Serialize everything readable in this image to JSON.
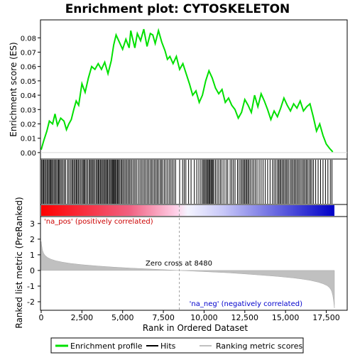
{
  "chart_data": {
    "type": "line",
    "title": "Enrichment plot: CYTOSKELETON",
    "x_max": 18000,
    "x_ticks": [
      0,
      2500,
      5000,
      7500,
      10000,
      12500,
      15000,
      17500
    ],
    "xlabel": "Rank in Ordered Dataset",
    "es_panel": {
      "ylabel": "Enrichment score (ES)",
      "ylim": [
        -0.004,
        0.092
      ],
      "y_ticks": [
        0.0,
        0.01,
        0.02,
        0.03,
        0.04,
        0.05,
        0.06,
        0.07,
        0.08
      ],
      "y_tick_labels": [
        "0.00",
        "0.01",
        "0.02",
        "0.03",
        "0.04",
        "0.05",
        "0.06",
        "0.07",
        "0.08"
      ],
      "color": "#00e000",
      "x": [
        0,
        150,
        350,
        500,
        700,
        850,
        1000,
        1200,
        1400,
        1550,
        1700,
        1850,
        2000,
        2150,
        2300,
        2500,
        2700,
        2900,
        3100,
        3300,
        3500,
        3700,
        3900,
        4100,
        4300,
        4450,
        4600,
        4800,
        5000,
        5200,
        5400,
        5500,
        5600,
        5750,
        5900,
        6100,
        6300,
        6500,
        6700,
        6850,
        7000,
        7200,
        7400,
        7600,
        7750,
        7900,
        8100,
        8300,
        8500,
        8700,
        8900,
        9100,
        9300,
        9500,
        9700,
        9900,
        10100,
        10300,
        10500,
        10700,
        10900,
        11100,
        11300,
        11500,
        11700,
        11900,
        12100,
        12300,
        12500,
        12700,
        12900,
        13100,
        13300,
        13500,
        13700,
        13900,
        14100,
        14300,
        14500,
        14700,
        14900,
        15100,
        15300,
        15500,
        15700,
        15900,
        16100,
        16300,
        16500,
        16700,
        16900,
        17100,
        17300,
        17500,
        17700,
        17900
      ],
      "y": [
        0.002,
        0.008,
        0.015,
        0.022,
        0.02,
        0.027,
        0.019,
        0.024,
        0.022,
        0.016,
        0.02,
        0.023,
        0.03,
        0.036,
        0.033,
        0.048,
        0.042,
        0.052,
        0.06,
        0.058,
        0.062,
        0.058,
        0.063,
        0.055,
        0.064,
        0.075,
        0.082,
        0.077,
        0.072,
        0.079,
        0.073,
        0.085,
        0.08,
        0.073,
        0.083,
        0.078,
        0.086,
        0.074,
        0.083,
        0.082,
        0.076,
        0.085,
        0.077,
        0.071,
        0.065,
        0.067,
        0.062,
        0.067,
        0.058,
        0.062,
        0.055,
        0.048,
        0.04,
        0.043,
        0.035,
        0.04,
        0.05,
        0.057,
        0.052,
        0.045,
        0.041,
        0.044,
        0.035,
        0.038,
        0.033,
        0.03,
        0.024,
        0.028,
        0.037,
        0.033,
        0.028,
        0.04,
        0.032,
        0.041,
        0.036,
        0.03,
        0.023,
        0.029,
        0.025,
        0.031,
        0.038,
        0.033,
        0.029,
        0.034,
        0.031,
        0.036,
        0.029,
        0.032,
        0.034,
        0.025,
        0.015,
        0.02,
        0.012,
        0.006,
        0.003,
        0.0005
      ]
    },
    "hits": [
      30,
      90,
      150,
      210,
      280,
      350,
      410,
      480,
      540,
      600,
      650,
      720,
      790,
      860,
      920,
      1000,
      1060,
      1110,
      1190,
      1260,
      1340,
      1420,
      1500,
      1620,
      1700,
      1790,
      1870,
      1940,
      2010,
      2080,
      2150,
      2210,
      2280,
      2350,
      2430,
      2510,
      2580,
      2640,
      2700,
      2780,
      2860,
      2950,
      3010,
      3080,
      3150,
      3210,
      3290,
      3370,
      3440,
      3500,
      3560,
      3630,
      3690,
      3760,
      3830,
      3890,
      3960,
      4020,
      4080,
      4150,
      4220,
      4280,
      4350,
      4400,
      4450,
      4500,
      4560,
      4620,
      4680,
      4740,
      4800,
      4880,
      4950,
      5020,
      5100,
      5180,
      5260,
      5340,
      5420,
      5500,
      5580,
      5680,
      5760,
      5850,
      5960,
      6060,
      6150,
      6240,
      6330,
      6420,
      6510,
      6600,
      6690,
      6780,
      6860,
      6950,
      7040,
      7120,
      7200,
      7300,
      7380,
      7460,
      7560,
      7660,
      7760,
      7860,
      7960,
      8050,
      8150,
      8250,
      8500,
      8680,
      8780,
      8880,
      9050,
      9200,
      9400,
      9550,
      9680,
      9800,
      9900,
      9970,
      10040,
      10110,
      10180,
      10240,
      10300,
      10360,
      10420,
      10480,
      10540,
      10600,
      10700,
      10800,
      10900,
      11000,
      11100,
      11220,
      11350,
      11450,
      11600,
      11700,
      11800,
      11900,
      12050,
      12150,
      12250,
      12330,
      12410,
      12480,
      12550,
      12620,
      12690,
      12760,
      12850,
      12950,
      13050,
      13150,
      13250,
      13380,
      13500,
      13620,
      13750,
      13900,
      14050,
      14200,
      14300,
      14400,
      14500,
      14580,
      14650,
      14720,
      14800,
      14880,
      14960,
      15040,
      15110,
      15200,
      15300,
      15380,
      15460,
      15540,
      15620,
      15700,
      15780,
      15860,
      15950,
      16040,
      16120,
      16200,
      16280,
      16360,
      16450,
      16540,
      16620,
      16720,
      16850,
      17000,
      17150,
      17300,
      17450,
      17600,
      17750,
      17850
    ],
    "metric_panel": {
      "ylabel": "Ranked list metric (PreRanked)",
      "ylim": [
        -2.5,
        3.4
      ],
      "y_ticks": [
        -2,
        -1,
        0,
        1,
        2,
        3
      ],
      "y_tick_labels": [
        "-2",
        "-1",
        "0",
        "1",
        "2",
        "3"
      ],
      "x": [
        0,
        30,
        80,
        150,
        250,
        400,
        600,
        900,
        1300,
        1800,
        2500,
        3500,
        4500,
        5500,
        6500,
        7500,
        8480,
        9500,
        10500,
        11500,
        12500,
        13500,
        14500,
        15500,
        16000,
        16500,
        17000,
        17300,
        17550,
        17700,
        17800,
        17850,
        17900,
        17950,
        18000
      ],
      "y": [
        1.85,
        1.6,
        1.3,
        1.1,
        0.95,
        0.82,
        0.72,
        0.62,
        0.53,
        0.45,
        0.37,
        0.28,
        0.21,
        0.15,
        0.1,
        0.05,
        0.0,
        -0.05,
        -0.1,
        -0.15,
        -0.22,
        -0.3,
        -0.38,
        -0.48,
        -0.55,
        -0.63,
        -0.75,
        -0.85,
        -0.97,
        -1.1,
        -1.25,
        -1.4,
        -1.6,
        -1.95,
        -2.4
      ]
    },
    "zero_cross": 8480,
    "zero_cross_label": "Zero cross at 8480",
    "pos_label": "'na_pos' (positively correlated)",
    "neg_label": "'na_neg' (negatively correlated)",
    "legend": {
      "position": "bottom",
      "entries": [
        "Enrichment profile",
        "Hits",
        "Ranking metric scores"
      ]
    }
  }
}
